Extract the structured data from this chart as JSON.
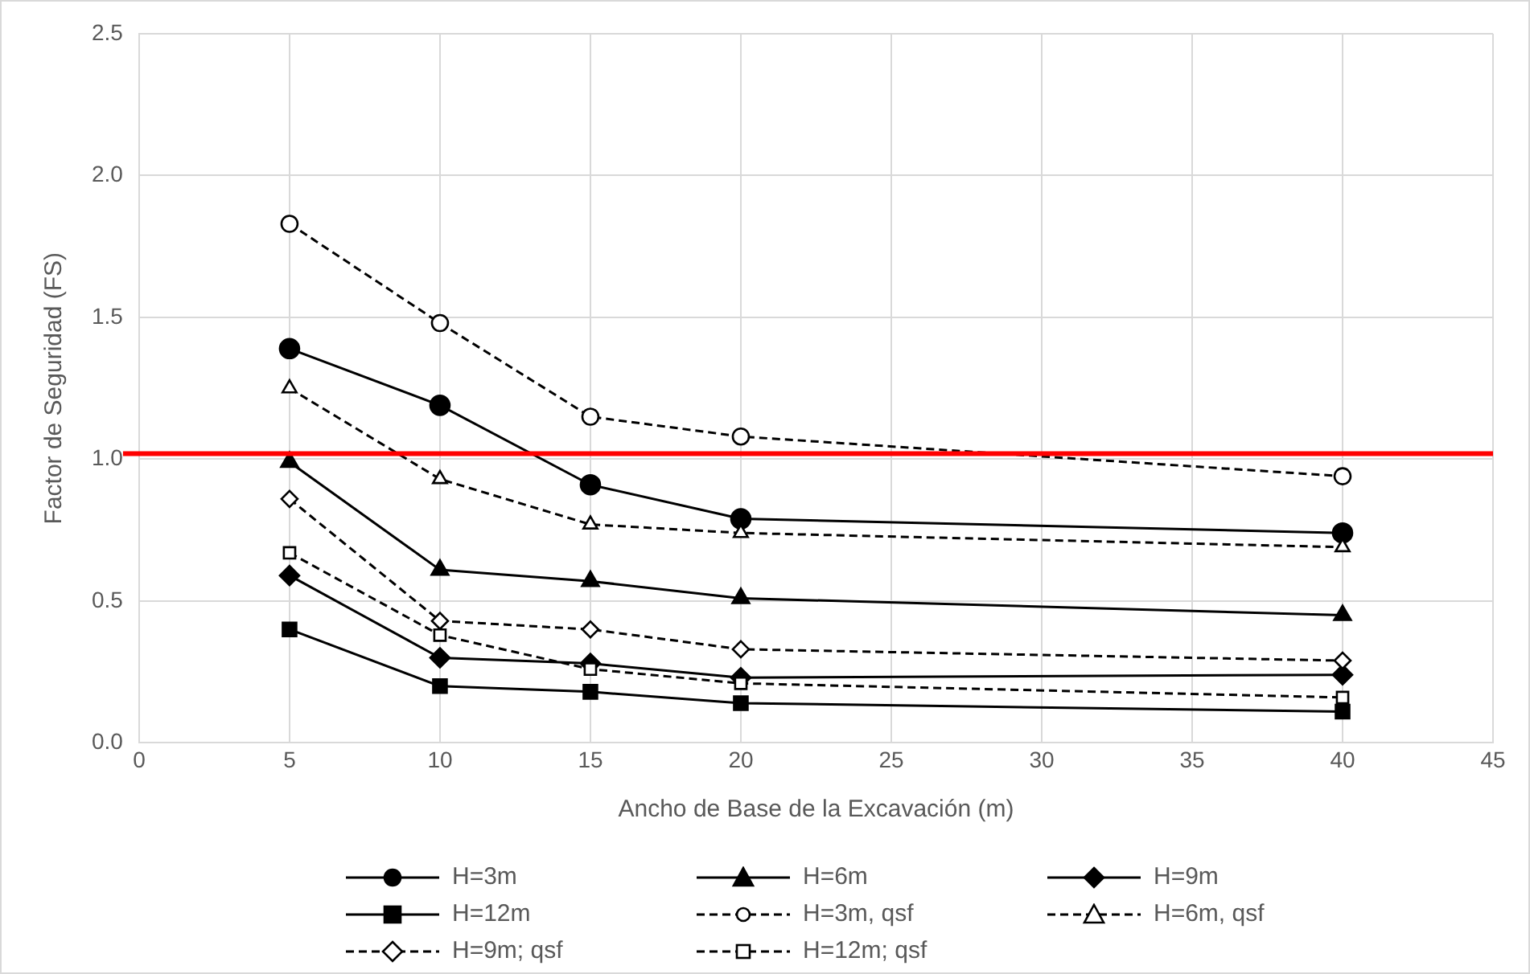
{
  "chart_data": {
    "type": "line",
    "xlabel": "Ancho de Base de la Excavación (m)",
    "ylabel": "Factor de Seguridad (FS)",
    "x": [
      5,
      10,
      15,
      20,
      40
    ],
    "xlim": [
      0,
      45
    ],
    "xticks": [
      0,
      5,
      10,
      15,
      20,
      25,
      30,
      35,
      40,
      45
    ],
    "ylim": [
      0,
      2.5
    ],
    "yticks": [
      {
        "value": 0,
        "label": "0.0"
      },
      {
        "value": 0.5,
        "label": "0.5"
      },
      {
        "value": 1,
        "label": "1.0"
      },
      {
        "value": 1.5,
        "label": "1.5"
      },
      {
        "value": 2,
        "label": "2.0"
      },
      {
        "value": 2.5,
        "label": "2.5"
      }
    ],
    "grid": true,
    "legend": "bottom",
    "series": [
      {
        "name": "H=3m",
        "color": "#000000",
        "marker": "circle",
        "line_style": "solid",
        "values": [
          1.39,
          1.19,
          0.91,
          0.79,
          0.74
        ]
      },
      {
        "name": "H=6m",
        "color": "#000000",
        "marker": "triangle",
        "line_style": "solid",
        "values": [
          0.99,
          0.61,
          0.57,
          0.51,
          0.45
        ]
      },
      {
        "name": "H=9m",
        "color": "#000000",
        "marker": "diamond",
        "line_style": "solid",
        "values": [
          0.59,
          0.3,
          0.28,
          0.23,
          0.24
        ]
      },
      {
        "name": "H=12m",
        "color": "#000000",
        "marker": "square",
        "line_style": "solid",
        "values": [
          0.4,
          0.2,
          0.18,
          0.14,
          0.11
        ]
      },
      {
        "name": "H=3m, qsf",
        "color": "#000000",
        "marker": "circle",
        "line_style": "dashed",
        "values": [
          1.83,
          1.48,
          1.15,
          1.08,
          0.94
        ]
      },
      {
        "name": "H=6m, qsf",
        "color": "#000000",
        "marker": "triangle",
        "line_style": "dashed",
        "values": [
          1.25,
          0.93,
          0.77,
          0.74,
          0.69
        ]
      },
      {
        "name": "H=9m; qsf",
        "color": "#000000",
        "marker": "diamond",
        "line_style": "dashed",
        "values": [
          0.86,
          0.43,
          0.4,
          0.33,
          0.29
        ]
      },
      {
        "name": "H=12m; qsf",
        "color": "#000000",
        "marker": "square",
        "line_style": "dashed",
        "values": [
          0.67,
          0.38,
          0.26,
          0.21,
          0.16
        ]
      }
    ],
    "ref_lines": [
      {
        "axis": "y",
        "value": 1.02,
        "label": null,
        "color": "#ff0000"
      }
    ]
  }
}
